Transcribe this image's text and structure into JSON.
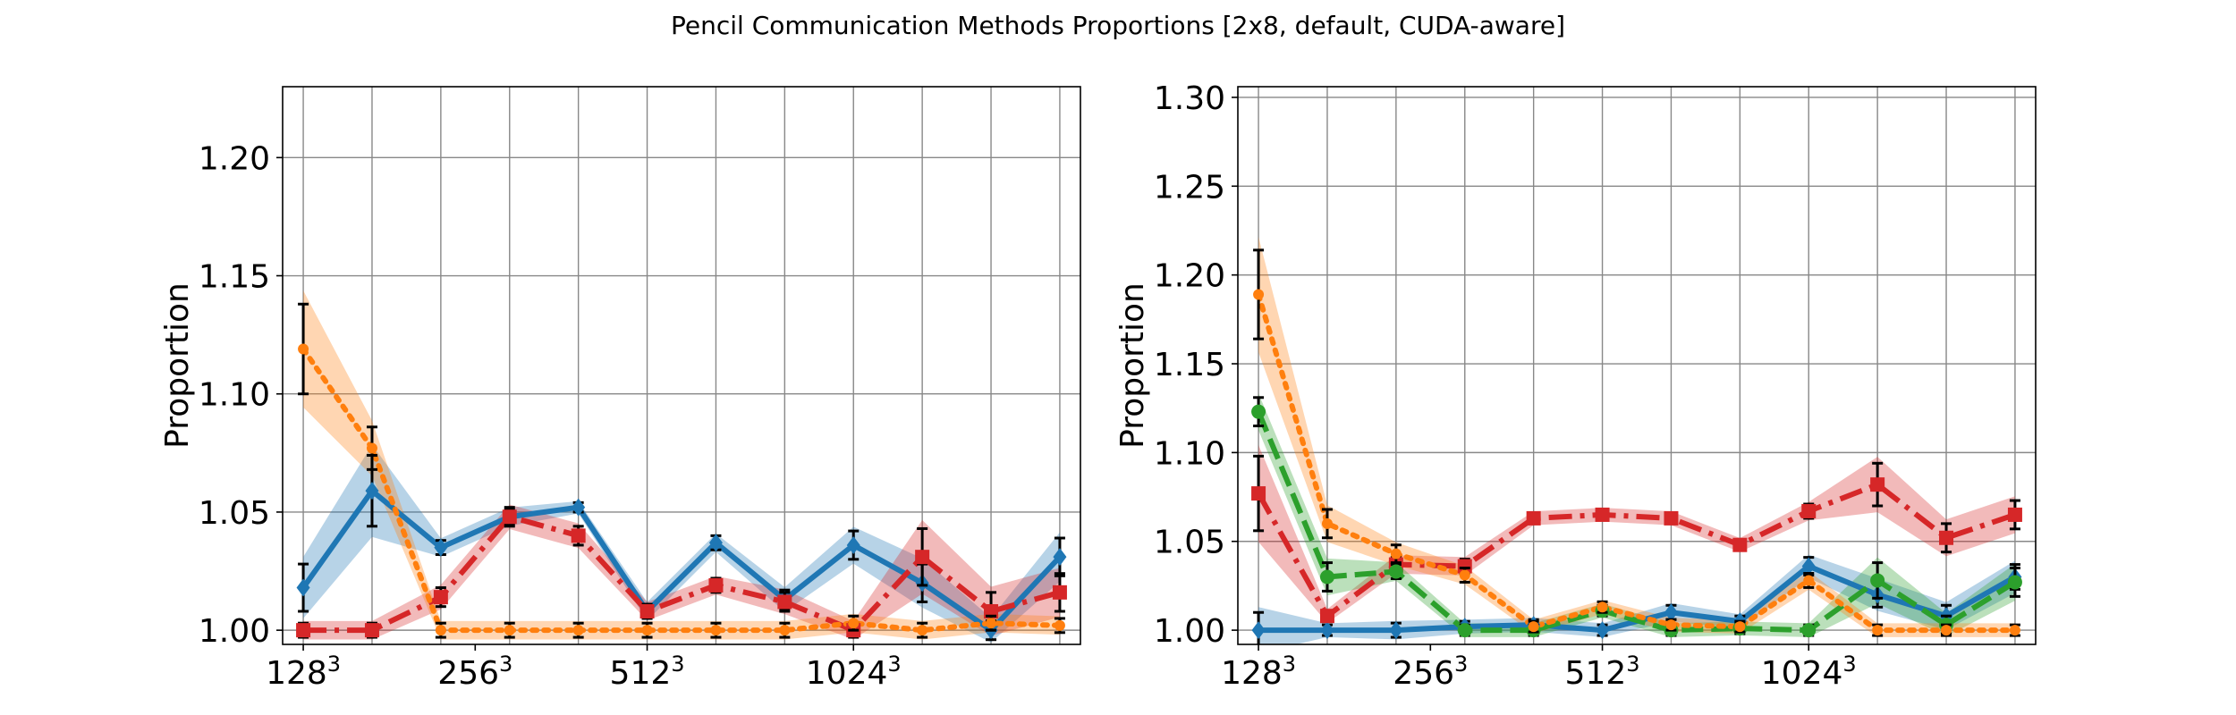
{
  "figure": {
    "title": "Pencil Communication Methods Proportions [2x8, default, CUDA-aware]"
  },
  "chart_data": [
    {
      "type": "line",
      "ylabel": "Proportion",
      "xlim": [
        -0.3,
        11.3
      ],
      "ylim": [
        0.994,
        1.23
      ],
      "grid": true,
      "x_ticks": [
        0,
        2.5,
        5,
        8
      ],
      "x_tick_labels": [
        {
          "base": "128",
          "exp": "3"
        },
        {
          "base": "256",
          "exp": "3"
        },
        {
          "base": "512",
          "exp": "3"
        },
        {
          "base": "1024",
          "exp": "3"
        }
      ],
      "x_grid": [
        0,
        1,
        2,
        3,
        4,
        5,
        6,
        7,
        8,
        9,
        10,
        11
      ],
      "y_ticks": [
        1.0,
        1.05,
        1.1,
        1.15,
        1.2
      ],
      "y_tick_labels": [
        "1.00",
        "1.05",
        "1.10",
        "1.15",
        "1.20"
      ],
      "series": [
        {
          "color": "#1f77b4",
          "style": "solid",
          "marker": "diamond",
          "x": [
            0,
            1,
            2,
            3,
            4,
            5,
            6,
            7,
            8,
            9,
            10,
            11
          ],
          "y": [
            1.018,
            1.059,
            1.035,
            1.048,
            1.052,
            1.008,
            1.037,
            1.013,
            1.036,
            1.02,
            1.0,
            1.031
          ],
          "err": [
            0.01,
            0.015,
            0.003,
            0.003,
            0.002,
            0.003,
            0.003,
            0.004,
            0.006,
            0.008,
            0.004,
            0.008
          ]
        },
        {
          "color": "#d62728",
          "style": "dashdot",
          "marker": "square",
          "x": [
            0,
            1,
            2,
            3,
            4,
            5,
            6,
            7,
            8,
            9,
            10,
            11
          ],
          "y": [
            1.0,
            1.0,
            1.014,
            1.048,
            1.04,
            1.008,
            1.019,
            1.012,
            1.0,
            1.031,
            1.008,
            1.016
          ],
          "err": [
            0.003,
            0.003,
            0.004,
            0.004,
            0.004,
            0.003,
            0.003,
            0.004,
            0.003,
            0.012,
            0.008,
            0.008
          ]
        },
        {
          "color": "#ff7f0e",
          "style": "dotted",
          "marker": "circle",
          "x": [
            0,
            1,
            2,
            3,
            4,
            5,
            6,
            7,
            8,
            9,
            10,
            11
          ],
          "y": [
            1.119,
            1.077,
            1.0,
            1.0,
            1.0,
            1.0,
            1.0,
            1.0,
            1.003,
            1.0,
            1.003,
            1.002
          ],
          "err": [
            0.019,
            0.009,
            0.003,
            0.003,
            0.003,
            0.003,
            0.003,
            0.003,
            0.003,
            0.003,
            0.003,
            0.003
          ]
        }
      ]
    },
    {
      "type": "line",
      "ylabel": "Proportion",
      "xlim": [
        -0.3,
        11.3
      ],
      "ylim": [
        0.992,
        1.306
      ],
      "grid": true,
      "x_ticks": [
        0,
        2.5,
        5,
        8
      ],
      "x_tick_labels": [
        {
          "base": "128",
          "exp": "3"
        },
        {
          "base": "256",
          "exp": "3"
        },
        {
          "base": "512",
          "exp": "3"
        },
        {
          "base": "1024",
          "exp": "3"
        }
      ],
      "x_grid": [
        0,
        1,
        2,
        3,
        4,
        5,
        6,
        7,
        8,
        9,
        10,
        11
      ],
      "y_ticks": [
        1.0,
        1.05,
        1.1,
        1.15,
        1.2,
        1.25,
        1.3
      ],
      "y_tick_labels": [
        "1.00",
        "1.05",
        "1.10",
        "1.15",
        "1.20",
        "1.25",
        "1.30"
      ],
      "series": [
        {
          "color": "#1f77b4",
          "style": "solid",
          "marker": "diamond",
          "x": [
            0,
            1,
            2,
            3,
            4,
            5,
            6,
            7,
            8,
            9,
            10,
            11
          ],
          "y": [
            1.0,
            1.0,
            1.0,
            1.002,
            1.003,
            1.0,
            1.01,
            1.005,
            1.036,
            1.02,
            1.008,
            1.03
          ],
          "err": [
            0.01,
            0.003,
            0.004,
            0.003,
            0.003,
            0.003,
            0.004,
            0.003,
            0.005,
            0.007,
            0.006,
            0.007
          ]
        },
        {
          "color": "#d62728",
          "style": "dashdot",
          "marker": "square",
          "x": [
            0,
            1,
            2,
            3,
            4,
            5,
            6,
            7,
            8,
            9,
            10,
            11
          ],
          "y": [
            1.077,
            1.008,
            1.037,
            1.036,
            1.063,
            1.065,
            1.063,
            1.048,
            1.067,
            1.082,
            1.052,
            1.065
          ],
          "err": [
            0.021,
            0.003,
            0.004,
            0.004,
            0.003,
            0.003,
            0.003,
            0.003,
            0.004,
            0.012,
            0.008,
            0.008
          ]
        },
        {
          "color": "#2ca02c",
          "style": "dashed",
          "marker": "circle",
          "x": [
            0,
            1,
            2,
            3,
            4,
            5,
            6,
            7,
            8,
            9,
            10,
            11
          ],
          "y": [
            1.123,
            1.03,
            1.033,
            1.0,
            1.0,
            1.011,
            1.0,
            1.001,
            1.0,
            1.028,
            1.003,
            1.027
          ],
          "err": [
            0.008,
            0.008,
            0.004,
            0.003,
            0.003,
            0.003,
            0.003,
            0.003,
            0.003,
            0.01,
            0.005,
            0.008
          ]
        },
        {
          "color": "#ff7f0e",
          "style": "dotted",
          "marker": "circle",
          "x": [
            0,
            1,
            2,
            3,
            4,
            5,
            6,
            7,
            8,
            9,
            10,
            11
          ],
          "y": [
            1.189,
            1.06,
            1.043,
            1.031,
            1.002,
            1.013,
            1.003,
            1.002,
            1.028,
            1.0,
            1.0,
            1.0
          ],
          "err": [
            0.025,
            0.008,
            0.005,
            0.004,
            0.003,
            0.003,
            0.003,
            0.003,
            0.004,
            0.003,
            0.003,
            0.003
          ]
        }
      ]
    }
  ]
}
